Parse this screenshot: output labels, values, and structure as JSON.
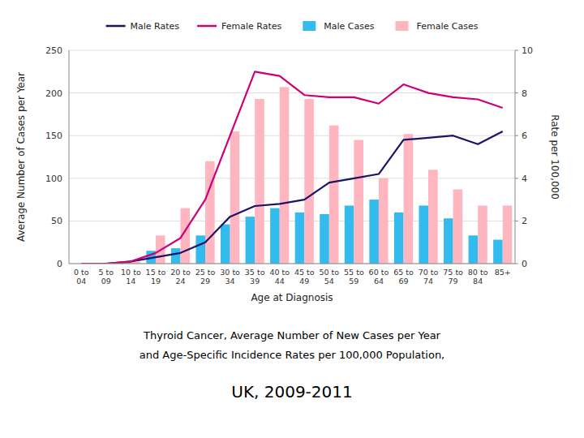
{
  "chart_data": {
    "type": "bar",
    "title": "Thyroid Cancer,  Average Number of New Cases per Year",
    "subtitle": [
      "and Age-Specific Incidence Rates per 100,000 Population,",
      "UK, 2009-2011"
    ],
    "xlabel": "Age at Diagnosis",
    "ylabel": "Average Number of Cases per Year",
    "y2label": "Rate per 100,000",
    "categories": [
      "0 to\n04",
      "5 to\n09",
      "10 to\n14",
      "15 to\n19",
      "20 to\n24",
      "25 to\n29",
      "30 to\n34",
      "35 to\n39",
      "40 to\n44",
      "45 to\n49",
      "50 to\n54",
      "55 to\n59",
      "60 to\n64",
      "65 to\n69",
      "70 to\n74",
      "75 to\n79",
      "80 to\n84",
      "85+"
    ],
    "series": [
      {
        "name": "Male Rates",
        "type": "line",
        "axis": "y2",
        "color": "#1B1464",
        "values": [
          0,
          0,
          0.1,
          0.3,
          0.5,
          1.0,
          2.2,
          2.7,
          2.8,
          3.0,
          3.8,
          4.0,
          4.2,
          5.8,
          5.9,
          6.0,
          5.6,
          6.2
        ]
      },
      {
        "name": "Female Rates",
        "type": "line",
        "axis": "y2",
        "color": "#CC0077",
        "values": [
          0,
          0,
          0.1,
          0.5,
          1.2,
          3.0,
          6.0,
          9.0,
          8.8,
          7.9,
          7.8,
          7.8,
          7.5,
          8.4,
          8.0,
          7.8,
          7.7,
          7.3
        ]
      },
      {
        "name": "Male Cases",
        "type": "bar",
        "color": "#33BBEE",
        "values": [
          0,
          0,
          1,
          15,
          18,
          33,
          46,
          55,
          65,
          60,
          58,
          68,
          75,
          60,
          68,
          53,
          33,
          28
        ]
      },
      {
        "name": "Female Cases",
        "type": "bar",
        "color": "#FFB6C1",
        "values": [
          0,
          0,
          2,
          33,
          65,
          120,
          155,
          193,
          207,
          193,
          162,
          145,
          100,
          152,
          110,
          87,
          68,
          68
        ]
      }
    ],
    "ylim": [
      0,
      250
    ],
    "yticks": [
      0,
      50,
      100,
      150,
      200,
      250
    ],
    "y2lim": [
      0,
      10
    ],
    "y2ticks": [
      0,
      2,
      4,
      6,
      8,
      10
    ],
    "grid": true,
    "legend": "top"
  }
}
